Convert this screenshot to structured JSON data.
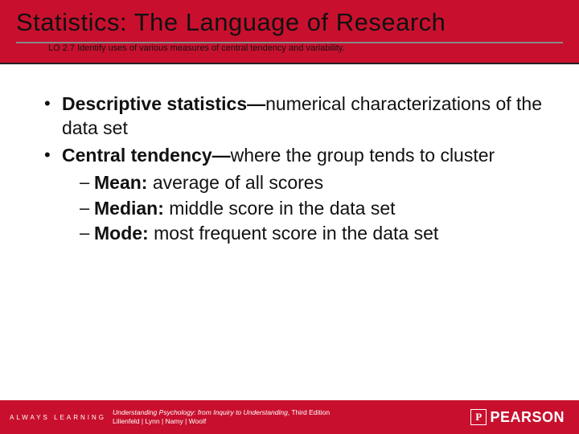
{
  "colors": {
    "brand_red": "#c8102e",
    "text": "#111111",
    "background": "#ffffff",
    "footer_text": "#ffffff"
  },
  "header": {
    "title": "Statistics: The Language of Research",
    "subtitle": "LO 2.7 Identify uses of various measures of central tendency and variability."
  },
  "bullets": [
    {
      "level": 1,
      "bold_lead": "Descriptive statistics—",
      "rest": "numerical characterizations of the data set"
    },
    {
      "level": 1,
      "bold_lead": "Central tendency—",
      "rest": "where the group tends to cluster"
    },
    {
      "level": 2,
      "bold_lead": "Mean:",
      "rest": " average of all scores"
    },
    {
      "level": 2,
      "bold_lead": "Median:",
      "rest": " middle score in the data set"
    },
    {
      "level": 2,
      "bold_lead": "Mode:",
      "rest": " most frequent score in the data set"
    }
  ],
  "footer": {
    "left": "ALWAYS LEARNING",
    "book_title": "Understanding Psychology: from Inquiry to Understanding",
    "edition": ", Third Edition",
    "authors": "Lilienfeld | Lynn | Namy | Woolf",
    "brand": "PEARSON"
  }
}
